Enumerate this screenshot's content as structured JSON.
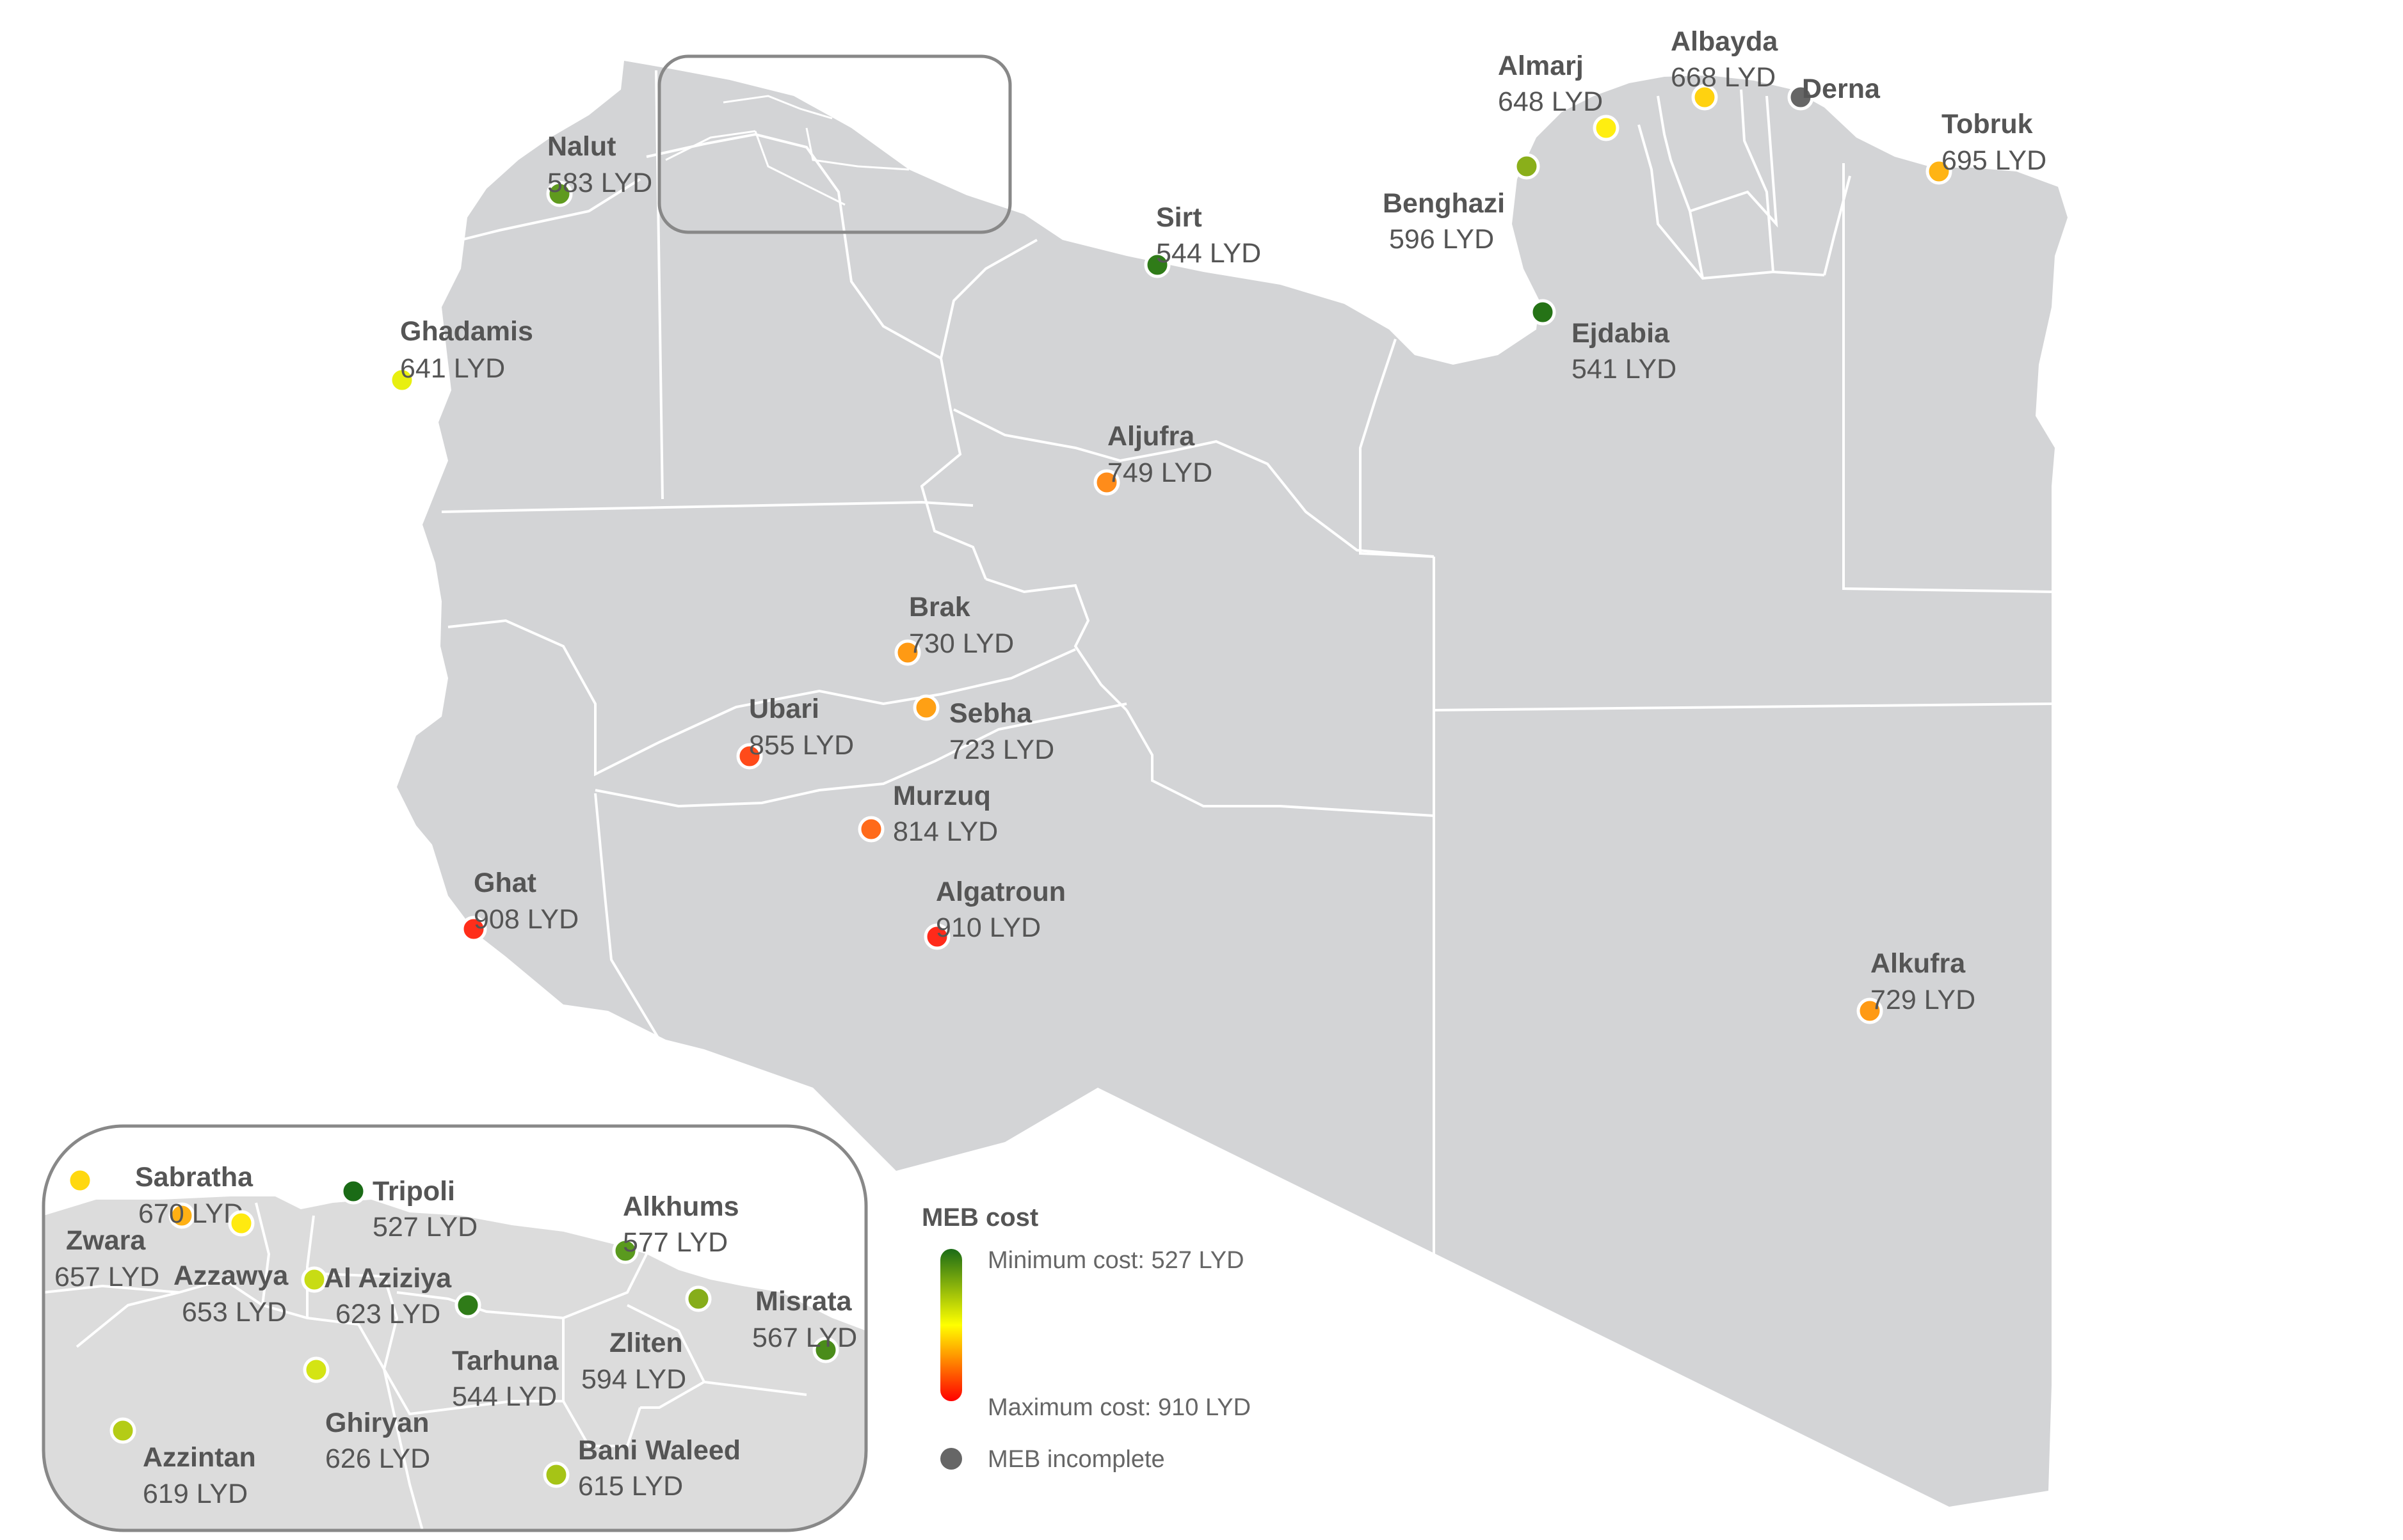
{
  "legend": {
    "title": "MEB cost",
    "min_label": "Minimum cost: 527 LYD",
    "max_label": "Maximum cost: 910 LYD",
    "incomplete_label": "MEB incomplete",
    "min_color": "#1a6b16",
    "mid_color": "#ffff00",
    "max_color": "#ff0000",
    "incomplete_color": "#666666"
  },
  "colors": {
    "land": "#d3d4d6",
    "border": "#ffffff",
    "inset_bg": "#dcdcdc",
    "inset_stroke": "#999999"
  },
  "main_locations": [
    {
      "name": "Nalut",
      "cost": "583 LYD",
      "color": "#5f9a1e"
    },
    {
      "name": "Ghadamis",
      "cost": "641 LYD",
      "color": "#e8ef10"
    },
    {
      "name": "Sirt",
      "cost": "544 LYD",
      "color": "#2f7b18"
    },
    {
      "name": "Aljufra",
      "cost": "749 LYD",
      "color": "#ff8c1a"
    },
    {
      "name": "Brak",
      "cost": "730 LYD",
      "color": "#ff9a14"
    },
    {
      "name": "Sebha",
      "cost": "723 LYD",
      "color": "#ffa014"
    },
    {
      "name": "Ubari",
      "cost": "855 LYD",
      "color": "#ff4a1a"
    },
    {
      "name": "Murzuq",
      "cost": "814 LYD",
      "color": "#ff6a1a"
    },
    {
      "name": "Algatroun",
      "cost": "910 LYD",
      "color": "#ff2a1a"
    },
    {
      "name": "Ghat",
      "cost": "908 LYD",
      "color": "#ff2e1a"
    },
    {
      "name": "Almarj",
      "cost": "648 LYD",
      "color": "#ffee10"
    },
    {
      "name": "Albayda",
      "cost": "668 LYD",
      "color": "#ffd210"
    },
    {
      "name": "Derna",
      "cost": "",
      "color": "#666666"
    },
    {
      "name": "Tobruk",
      "cost": "695 LYD",
      "color": "#ffb414"
    },
    {
      "name": "Benghazi",
      "cost": "596 LYD",
      "color": "#8aaf1a"
    },
    {
      "name": "Ejdabia",
      "cost": "541 LYD",
      "color": "#257316"
    },
    {
      "name": "Alkufra",
      "cost": "729 LYD",
      "color": "#ff9a14"
    }
  ],
  "inset_locations": [
    {
      "name": "Sabratha",
      "cost": "670 LYD",
      "color": "#ffb014"
    },
    {
      "name": "Zwara",
      "cost": "657 LYD",
      "color": "#ffd810"
    },
    {
      "name": "Azzawya",
      "cost": "653 LYD",
      "color": "#ffea10"
    },
    {
      "name": "Tripoli",
      "cost": "527 LYD",
      "color": "#1a6b16"
    },
    {
      "name": "Al Aziziya",
      "cost": "623 LYD",
      "color": "#c8dc14"
    },
    {
      "name": "Tarhuna",
      "cost": "544 LYD",
      "color": "#2f7b18"
    },
    {
      "name": "Alkhums",
      "cost": "577 LYD",
      "color": "#5a9a1e"
    },
    {
      "name": "Zliten",
      "cost": "594 LYD",
      "color": "#86ad1a"
    },
    {
      "name": "Misrata",
      "cost": "567 LYD",
      "color": "#4a8c1a"
    },
    {
      "name": "Ghiryan",
      "cost": "626 LYD",
      "color": "#d4e414"
    },
    {
      "name": "Azzintan",
      "cost": "619 LYD",
      "color": "#b4cc16"
    },
    {
      "name": "Bani Waleed",
      "cost": "615 LYD",
      "color": "#a6c416"
    }
  ]
}
